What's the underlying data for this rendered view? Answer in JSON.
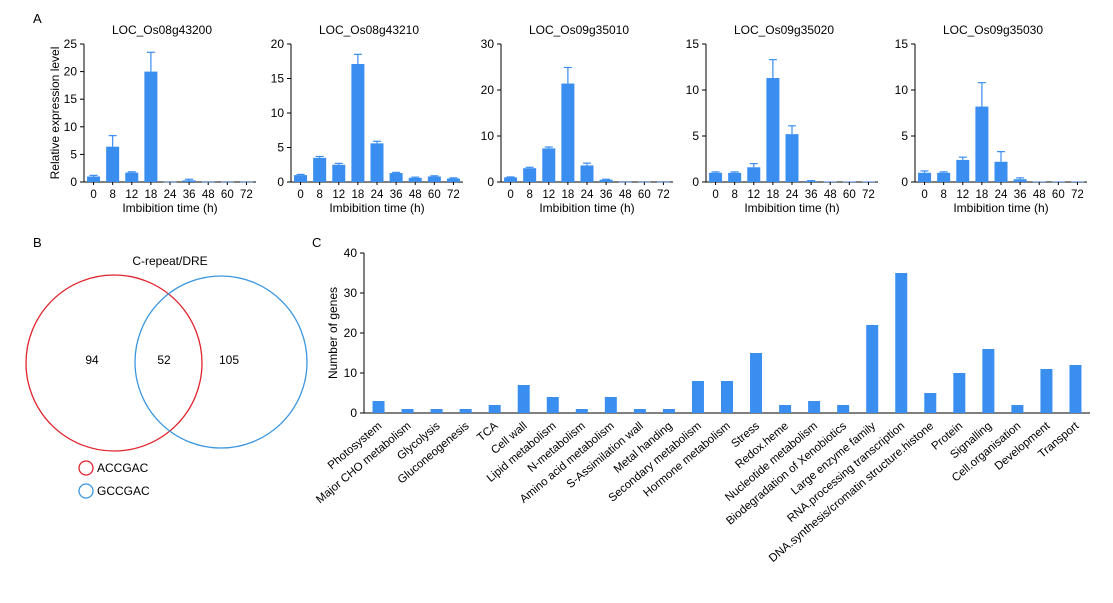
{
  "panel_labels": {
    "a": "A",
    "b": "B",
    "c": "C"
  },
  "colors": {
    "bar": "#3a8ef0",
    "red": "#e0232d",
    "blue": "#3a96e0",
    "axis": "#000000"
  },
  "chart_data": [
    {
      "type": "bar",
      "title": "LOC_Os08g43200",
      "categories": [
        "0",
        "8",
        "12",
        "18",
        "24",
        "36",
        "48",
        "60",
        "72"
      ],
      "values": [
        1.0,
        6.4,
        1.7,
        20.0,
        0.05,
        0.3,
        0.05,
        0.05,
        0.05
      ],
      "errors": [
        0.2,
        2.0,
        0.15,
        3.5,
        0.02,
        0.2,
        0.02,
        0.02,
        0.02
      ],
      "xlabel": "Imbibition time (h)",
      "ylabel": "Relative expression level",
      "ylim": [
        0,
        25
      ],
      "yticks": [
        0,
        5,
        10,
        15,
        20,
        25
      ]
    },
    {
      "type": "bar",
      "title": "LOC_Os08g43210",
      "categories": [
        "0",
        "8",
        "12",
        "18",
        "24",
        "36",
        "48",
        "60",
        "72"
      ],
      "values": [
        1.0,
        3.5,
        2.5,
        17.1,
        5.6,
        1.3,
        0.6,
        0.8,
        0.5
      ],
      "errors": [
        0.1,
        0.2,
        0.2,
        1.4,
        0.3,
        0.1,
        0.1,
        0.1,
        0.1
      ],
      "xlabel": "Imbibition time (h)",
      "ylabel": "",
      "ylim": [
        0,
        20
      ],
      "yticks": [
        0,
        5,
        10,
        15,
        20
      ]
    },
    {
      "type": "bar",
      "title": "LOC_Os09g35010",
      "categories": [
        "0",
        "8",
        "12",
        "18",
        "24",
        "36",
        "48",
        "60",
        "72"
      ],
      "values": [
        1.0,
        3.0,
        7.3,
        21.4,
        3.6,
        0.5,
        0.05,
        0.05,
        0.05
      ],
      "errors": [
        0.1,
        0.2,
        0.3,
        3.5,
        0.5,
        0.1,
        0.02,
        0.02,
        0.02
      ],
      "xlabel": "Imbibition time (h)",
      "ylabel": "",
      "ylim": [
        0,
        30
      ],
      "yticks": [
        0,
        10,
        20,
        30
      ]
    },
    {
      "type": "bar",
      "title": "LOC_Os09g35020",
      "categories": [
        "0",
        "8",
        "12",
        "18",
        "24",
        "36",
        "48",
        "60",
        "72"
      ],
      "values": [
        1.0,
        1.0,
        1.6,
        11.3,
        5.2,
        0.1,
        0.05,
        0.05,
        0.05
      ],
      "errors": [
        0.1,
        0.1,
        0.4,
        2.0,
        0.9,
        0.05,
        0.02,
        0.02,
        0.02
      ],
      "xlabel": "Imbibition time (h)",
      "ylabel": "",
      "ylim": [
        0,
        15
      ],
      "yticks": [
        0,
        5,
        10,
        15
      ]
    },
    {
      "type": "bar",
      "title": "LOC_Os09g35030",
      "categories": [
        "0",
        "8",
        "12",
        "18",
        "24",
        "36",
        "48",
        "60",
        "72"
      ],
      "values": [
        1.0,
        1.0,
        2.4,
        8.2,
        2.2,
        0.3,
        0.05,
        0.05,
        0.05
      ],
      "errors": [
        0.2,
        0.1,
        0.3,
        2.6,
        1.1,
        0.15,
        0.02,
        0.02,
        0.02
      ],
      "xlabel": "Imbibition time (h)",
      "ylabel": "",
      "ylim": [
        0,
        15
      ],
      "yticks": [
        0,
        5,
        10,
        15
      ]
    },
    {
      "type": "bar",
      "title": "",
      "categories": [
        "Photosystem",
        "Major CHO metabolism",
        "Glycolysis",
        "Gluconeogenesis",
        "TCA",
        "Cell wall",
        "Lipid metabolism",
        "N-metabolism",
        "Amino acid metabolism",
        "S-Assimilation wall",
        "Metal handing",
        "Secondary metabolism",
        "Hormone metabolism",
        "Stress",
        "Redox.heme",
        "Nucleotide metabolism",
        "Biodegradation of Xenobiotics",
        "Large enzyme family",
        "RNA.processing transcription",
        "DNA.synthesis/cromatin structure.histone",
        "Protein",
        "Signalling",
        "Cell.organisation",
        "Development",
        "Transport"
      ],
      "values": [
        3,
        1,
        1,
        1,
        2,
        7,
        4,
        1,
        4,
        1,
        1,
        8,
        8,
        15,
        2,
        3,
        2,
        22,
        35,
        5,
        10,
        16,
        2,
        11,
        12
      ],
      "xlabel": "",
      "ylabel": "Number of genes",
      "ylim": [
        0,
        40
      ],
      "yticks": [
        0,
        10,
        20,
        30,
        40
      ]
    }
  ],
  "venn": {
    "title": "C-repeat/DRE",
    "left_only": "94",
    "overlap": "52",
    "right_only": "105",
    "legend": [
      {
        "label": "ACCGAC",
        "color": "#e0232d"
      },
      {
        "label": "GCCGAC",
        "color": "#3a96e0"
      }
    ]
  }
}
